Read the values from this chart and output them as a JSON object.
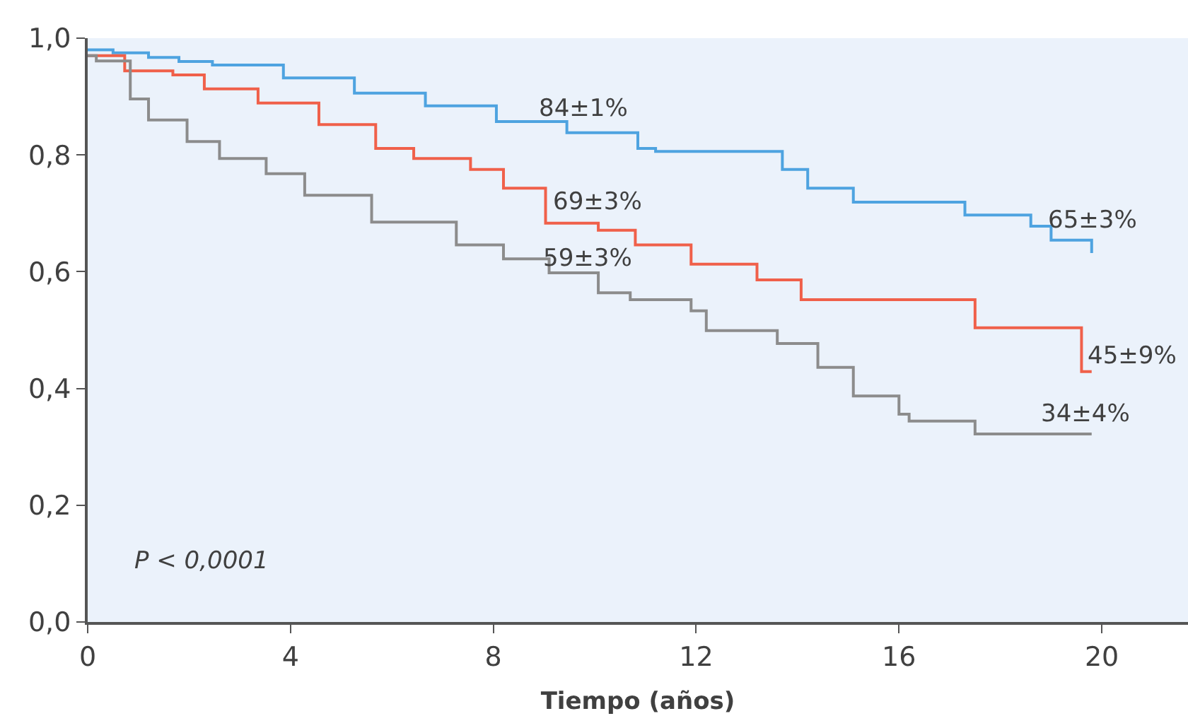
{
  "chart_data": {
    "type": "step",
    "xlabel": "Tiempo (años)",
    "xlim": [
      0,
      21.7
    ],
    "ylim": [
      0,
      1
    ],
    "xticks": [
      0,
      4,
      8,
      12,
      16,
      20
    ],
    "yticks": [
      {
        "value": 0,
        "label": "0,0"
      },
      {
        "value": 0.2,
        "label": "0,2"
      },
      {
        "value": 0.4,
        "label": "0,4"
      },
      {
        "value": 0.6,
        "label": "0,6"
      },
      {
        "value": 0.8,
        "label": "0,8"
      },
      {
        "value": 1,
        "label": "1,0"
      }
    ],
    "grid": false,
    "marker": "none",
    "line_style": "solid",
    "series": [
      {
        "color": "#4ea3e0",
        "x": [
          0,
          0.5,
          1.2,
          1.8,
          2.46,
          3.86,
          5.26,
          6.66,
          8.06,
          9.45,
          10.85,
          11.2,
          13.7,
          14.2,
          15.1,
          17.3,
          18.6,
          19.0,
          19.8
        ],
        "values": [
          0.98,
          0.975,
          0.967,
          0.96,
          0.954,
          0.932,
          0.906,
          0.884,
          0.857,
          0.838,
          0.811,
          0.806,
          0.775,
          0.743,
          0.719,
          0.697,
          0.678,
          0.654,
          0.632
        ]
      },
      {
        "color": "#f0604a",
        "x": [
          0,
          0.73,
          1.68,
          2.3,
          3.36,
          4.56,
          5.68,
          6.43,
          7.55,
          8.2,
          9.03,
          10.07,
          10.8,
          11.9,
          13.2,
          14.07,
          17.5,
          19.6,
          19.8
        ],
        "values": [
          0.97,
          0.944,
          0.937,
          0.913,
          0.889,
          0.852,
          0.811,
          0.794,
          0.775,
          0.743,
          0.683,
          0.671,
          0.646,
          0.613,
          0.586,
          0.552,
          0.504,
          0.429,
          0.429
        ]
      },
      {
        "color": "#8c8c8c",
        "x": [
          0,
          0.17,
          0.84,
          1.2,
          1.96,
          2.6,
          3.52,
          4.28,
          5.6,
          7.27,
          8.2,
          9.1,
          10.07,
          10.7,
          11.9,
          12.2,
          13.6,
          14.4,
          15.1,
          16.0,
          16.2,
          17.5,
          19.8
        ],
        "values": [
          0.97,
          0.961,
          0.896,
          0.86,
          0.823,
          0.794,
          0.768,
          0.731,
          0.685,
          0.646,
          0.622,
          0.598,
          0.564,
          0.552,
          0.533,
          0.499,
          0.477,
          0.436,
          0.387,
          0.356,
          0.344,
          0.322,
          0.322
        ]
      }
    ],
    "annotations": [
      "84±1%",
      "69±3%",
      "59±3%",
      "65±3%",
      "45±9%",
      "34±4%",
      "P < 0,0001"
    ]
  }
}
